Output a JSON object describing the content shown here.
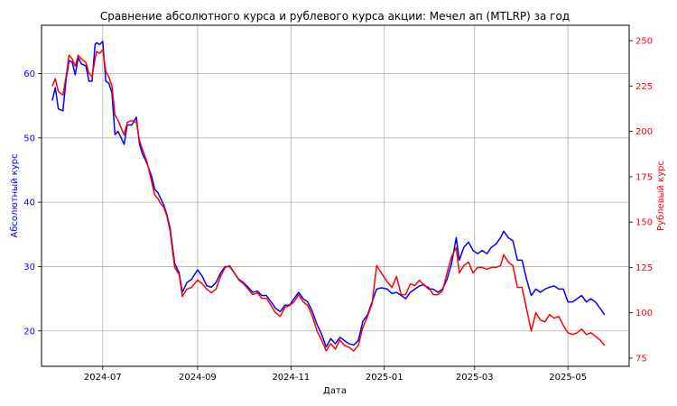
{
  "chart_data": {
    "type": "line",
    "title": "Сравнение абсолютного курса и рублевого курса акции: Мечел ап (MTLRP) за год",
    "xlabel": "Дата",
    "ylabel_left": "Абсолютный курс",
    "ylabel_right": "Рублевый курс",
    "grid": true,
    "colors": {
      "left": "#0000ff",
      "right": "#ff0000"
    },
    "x_ticks": [
      "2024-07",
      "2024-09",
      "2024-11",
      "2025-01",
      "2025-03",
      "2025-05"
    ],
    "y_left_ticks": [
      "20",
      "30",
      "40",
      "50",
      "60"
    ],
    "y_right_ticks": [
      "75",
      "100",
      "125",
      "150",
      "175",
      "200",
      "225",
      "250"
    ],
    "xlim": [
      "2024-05-22",
      "2025-06-10"
    ],
    "ylim_left": [
      14.5,
      67.5
    ],
    "ylim_right": [
      70.5,
      258.5
    ],
    "series": [
      {
        "axis": "left",
        "points": [
          [
            "2024-05-29",
            55.8
          ],
          [
            "2024-05-31",
            57.8
          ],
          [
            "2024-06-02",
            54.5
          ],
          [
            "2024-06-05",
            54.2
          ],
          [
            "2024-06-07",
            59.0
          ],
          [
            "2024-06-09",
            62.0
          ],
          [
            "2024-06-11",
            61.8
          ],
          [
            "2024-06-13",
            59.8
          ],
          [
            "2024-06-15",
            62.5
          ],
          [
            "2024-06-17",
            61.5
          ],
          [
            "2024-06-20",
            61.2
          ],
          [
            "2024-06-22",
            58.8
          ],
          [
            "2024-06-24",
            58.8
          ],
          [
            "2024-06-26",
            64.5
          ],
          [
            "2024-06-27",
            64.8
          ],
          [
            "2024-06-29",
            64.5
          ],
          [
            "2024-07-01",
            65.0
          ],
          [
            "2024-07-03",
            58.8
          ],
          [
            "2024-07-05",
            58.5
          ],
          [
            "2024-07-07",
            57.0
          ],
          [
            "2024-07-09",
            50.5
          ],
          [
            "2024-07-11",
            51.0
          ],
          [
            "2024-07-13",
            50.0
          ],
          [
            "2024-07-15",
            49.0
          ],
          [
            "2024-07-17",
            52.0
          ],
          [
            "2024-07-20",
            52.0
          ],
          [
            "2024-07-23",
            53.2
          ],
          [
            "2024-07-25",
            49.0
          ],
          [
            "2024-07-27",
            47.5
          ],
          [
            "2024-07-30",
            46.0
          ],
          [
            "2024-08-02",
            44.0
          ],
          [
            "2024-08-04",
            42.0
          ],
          [
            "2024-08-06",
            41.5
          ],
          [
            "2024-08-08",
            40.5
          ],
          [
            "2024-08-10",
            39.5
          ],
          [
            "2024-08-12",
            38.0
          ],
          [
            "2024-08-14",
            36.0
          ],
          [
            "2024-08-17",
            30.5
          ],
          [
            "2024-08-20",
            29.0
          ],
          [
            "2024-08-22",
            26.0
          ],
          [
            "2024-08-25",
            27.5
          ],
          [
            "2024-08-28",
            28.0
          ],
          [
            "2024-09-01",
            29.5
          ],
          [
            "2024-09-04",
            28.5
          ],
          [
            "2024-09-07",
            27.0
          ],
          [
            "2024-09-10",
            26.8
          ],
          [
            "2024-09-13",
            27.5
          ],
          [
            "2024-09-16",
            29.0
          ],
          [
            "2024-09-19",
            30.0
          ],
          [
            "2024-09-22",
            30.0
          ],
          [
            "2024-09-25",
            29.0
          ],
          [
            "2024-09-28",
            28.0
          ],
          [
            "2024-10-01",
            27.5
          ],
          [
            "2024-10-04",
            26.8
          ],
          [
            "2024-10-07",
            26.0
          ],
          [
            "2024-10-10",
            26.2
          ],
          [
            "2024-10-13",
            25.5
          ],
          [
            "2024-10-16",
            25.5
          ],
          [
            "2024-10-19",
            24.5
          ],
          [
            "2024-10-22",
            23.5
          ],
          [
            "2024-10-25",
            23.0
          ],
          [
            "2024-10-28",
            24.0
          ],
          [
            "2024-10-31",
            24.0
          ],
          [
            "2024-11-03",
            25.0
          ],
          [
            "2024-11-06",
            26.0
          ],
          [
            "2024-11-09",
            25.0
          ],
          [
            "2024-11-12",
            24.5
          ],
          [
            "2024-11-15",
            23.0
          ],
          [
            "2024-11-18",
            21.0
          ],
          [
            "2024-11-21",
            19.5
          ],
          [
            "2024-11-24",
            17.5
          ],
          [
            "2024-11-27",
            18.8
          ],
          [
            "2024-11-30",
            18.0
          ],
          [
            "2024-12-03",
            19.0
          ],
          [
            "2024-12-06",
            18.5
          ],
          [
            "2024-12-09",
            18.0
          ],
          [
            "2024-12-12",
            17.8
          ],
          [
            "2024-12-15",
            18.5
          ],
          [
            "2024-12-18",
            21.5
          ],
          [
            "2024-12-21",
            22.5
          ],
          [
            "2024-12-24",
            24.5
          ],
          [
            "2024-12-27",
            26.5
          ],
          [
            "2024-12-30",
            26.7
          ],
          [
            "2025-01-03",
            26.5
          ],
          [
            "2025-01-06",
            25.8
          ],
          [
            "2025-01-09",
            26.0
          ],
          [
            "2025-01-12",
            25.5
          ],
          [
            "2025-01-15",
            25.0
          ],
          [
            "2025-01-18",
            26.0
          ],
          [
            "2025-01-21",
            26.5
          ],
          [
            "2025-01-24",
            27.0
          ],
          [
            "2025-01-27",
            27.2
          ],
          [
            "2025-01-30",
            26.5
          ],
          [
            "2025-02-02",
            26.5
          ],
          [
            "2025-02-05",
            26.0
          ],
          [
            "2025-02-08",
            26.5
          ],
          [
            "2025-02-11",
            28.0
          ],
          [
            "2025-02-14",
            30.5
          ],
          [
            "2025-02-17",
            34.5
          ],
          [
            "2025-02-19",
            31.0
          ],
          [
            "2025-02-22",
            33.0
          ],
          [
            "2025-02-25",
            33.8
          ],
          [
            "2025-02-28",
            32.5
          ],
          [
            "2025-03-03",
            32.0
          ],
          [
            "2025-03-06",
            32.5
          ],
          [
            "2025-03-09",
            32.0
          ],
          [
            "2025-03-12",
            33.0
          ],
          [
            "2025-03-15",
            33.5
          ],
          [
            "2025-03-18",
            34.5
          ],
          [
            "2025-03-20",
            35.5
          ],
          [
            "2025-03-23",
            34.5
          ],
          [
            "2025-03-26",
            34.0
          ],
          [
            "2025-03-29",
            31.0
          ],
          [
            "2025-04-01",
            31.0
          ],
          [
            "2025-04-04",
            28.0
          ],
          [
            "2025-04-07",
            25.5
          ],
          [
            "2025-04-10",
            26.5
          ],
          [
            "2025-04-13",
            26.0
          ],
          [
            "2025-04-16",
            26.5
          ],
          [
            "2025-04-19",
            26.8
          ],
          [
            "2025-04-22",
            27.0
          ],
          [
            "2025-04-25",
            26.5
          ],
          [
            "2025-04-28",
            26.5
          ],
          [
            "2025-05-01",
            24.5
          ],
          [
            "2025-05-04",
            24.5
          ],
          [
            "2025-05-07",
            25.0
          ],
          [
            "2025-05-10",
            25.5
          ],
          [
            "2025-05-13",
            24.5
          ],
          [
            "2025-05-16",
            25.0
          ],
          [
            "2025-05-19",
            24.5
          ],
          [
            "2025-05-22",
            23.5
          ],
          [
            "2025-05-25",
            22.5
          ]
        ]
      },
      {
        "axis": "right",
        "points": [
          [
            "2024-05-29",
            225.0
          ],
          [
            "2024-05-31",
            229.0
          ],
          [
            "2024-06-02",
            222.0
          ],
          [
            "2024-06-05",
            220.0
          ],
          [
            "2024-06-07",
            230.0
          ],
          [
            "2024-06-09",
            242.0
          ],
          [
            "2024-06-11",
            240.0
          ],
          [
            "2024-06-13",
            236.0
          ],
          [
            "2024-06-15",
            242.0
          ],
          [
            "2024-06-17",
            240.0
          ],
          [
            "2024-06-20",
            238.0
          ],
          [
            "2024-06-22",
            232.0
          ],
          [
            "2024-06-24",
            230.0
          ],
          [
            "2024-06-26",
            240.0
          ],
          [
            "2024-06-27",
            244.0
          ],
          [
            "2024-06-29",
            243.0
          ],
          [
            "2024-07-01",
            245.0
          ],
          [
            "2024-07-03",
            233.0
          ],
          [
            "2024-07-05",
            230.0
          ],
          [
            "2024-07-07",
            225.0
          ],
          [
            "2024-07-09",
            209.0
          ],
          [
            "2024-07-11",
            206.0
          ],
          [
            "2024-07-13",
            202.0
          ],
          [
            "2024-07-15",
            198.0
          ],
          [
            "2024-07-17",
            205.0
          ],
          [
            "2024-07-20",
            206.0
          ],
          [
            "2024-07-23",
            205.0
          ],
          [
            "2024-07-25",
            195.0
          ],
          [
            "2024-07-27",
            190.0
          ],
          [
            "2024-07-30",
            183.0
          ],
          [
            "2024-08-02",
            172.0
          ],
          [
            "2024-08-04",
            165.0
          ],
          [
            "2024-08-06",
            163.0
          ],
          [
            "2024-08-08",
            160.0
          ],
          [
            "2024-08-10",
            158.0
          ],
          [
            "2024-08-12",
            153.0
          ],
          [
            "2024-08-14",
            145.0
          ],
          [
            "2024-08-17",
            125.0
          ],
          [
            "2024-08-20",
            121.0
          ],
          [
            "2024-08-22",
            109.0
          ],
          [
            "2024-08-25",
            113.0
          ],
          [
            "2024-08-28",
            114.0
          ],
          [
            "2024-09-01",
            118.0
          ],
          [
            "2024-09-04",
            116.0
          ],
          [
            "2024-09-07",
            113.0
          ],
          [
            "2024-09-10",
            111.0
          ],
          [
            "2024-09-13",
            113.0
          ],
          [
            "2024-09-16",
            120.0
          ],
          [
            "2024-09-19",
            125.0
          ],
          [
            "2024-09-22",
            126.0
          ],
          [
            "2024-09-25",
            122.0
          ],
          [
            "2024-09-28",
            118.0
          ],
          [
            "2024-10-01",
            116.0
          ],
          [
            "2024-10-04",
            113.0
          ],
          [
            "2024-10-07",
            110.0
          ],
          [
            "2024-10-10",
            111.0
          ],
          [
            "2024-10-13",
            108.0
          ],
          [
            "2024-10-16",
            108.0
          ],
          [
            "2024-10-19",
            104.0
          ],
          [
            "2024-10-22",
            100.0
          ],
          [
            "2024-10-25",
            98.0
          ],
          [
            "2024-10-28",
            103.0
          ],
          [
            "2024-10-31",
            104.0
          ],
          [
            "2024-11-03",
            106.0
          ],
          [
            "2024-11-06",
            110.0
          ],
          [
            "2024-11-09",
            106.0
          ],
          [
            "2024-11-12",
            104.0
          ],
          [
            "2024-11-15",
            98.0
          ],
          [
            "2024-11-18",
            90.0
          ],
          [
            "2024-11-21",
            85.0
          ],
          [
            "2024-11-24",
            79.0
          ],
          [
            "2024-11-27",
            83.0
          ],
          [
            "2024-11-30",
            80.0
          ],
          [
            "2024-12-03",
            85.0
          ],
          [
            "2024-12-06",
            82.0
          ],
          [
            "2024-12-09",
            81.0
          ],
          [
            "2024-12-12",
            79.0
          ],
          [
            "2024-12-15",
            82.0
          ],
          [
            "2024-12-18",
            92.0
          ],
          [
            "2024-12-21",
            98.0
          ],
          [
            "2024-12-24",
            105.0
          ],
          [
            "2024-12-27",
            126.0
          ],
          [
            "2024-12-30",
            122.0
          ],
          [
            "2025-01-03",
            117.0
          ],
          [
            "2025-01-06",
            114.0
          ],
          [
            "2025-01-09",
            120.0
          ],
          [
            "2025-01-12",
            110.0
          ],
          [
            "2025-01-15",
            110.0
          ],
          [
            "2025-01-18",
            116.0
          ],
          [
            "2025-01-21",
            115.0
          ],
          [
            "2025-01-24",
            118.0
          ],
          [
            "2025-01-27",
            115.0
          ],
          [
            "2025-01-30",
            114.0
          ],
          [
            "2025-02-02",
            110.0
          ],
          [
            "2025-02-05",
            110.0
          ],
          [
            "2025-02-08",
            112.0
          ],
          [
            "2025-02-11",
            122.0
          ],
          [
            "2025-02-14",
            131.0
          ],
          [
            "2025-02-17",
            136.0
          ],
          [
            "2025-02-19",
            122.0
          ],
          [
            "2025-02-22",
            126.0
          ],
          [
            "2025-02-25",
            128.0
          ],
          [
            "2025-02-28",
            122.0
          ],
          [
            "2025-03-03",
            125.0
          ],
          [
            "2025-03-06",
            125.0
          ],
          [
            "2025-03-09",
            124.0
          ],
          [
            "2025-03-12",
            125.0
          ],
          [
            "2025-03-15",
            125.0
          ],
          [
            "2025-03-18",
            126.0
          ],
          [
            "2025-03-20",
            132.0
          ],
          [
            "2025-03-23",
            128.0
          ],
          [
            "2025-03-26",
            126.0
          ],
          [
            "2025-03-29",
            114.0
          ],
          [
            "2025-04-01",
            114.0
          ],
          [
            "2025-04-04",
            102.0
          ],
          [
            "2025-04-07",
            90.0
          ],
          [
            "2025-04-10",
            100.0
          ],
          [
            "2025-04-13",
            96.0
          ],
          [
            "2025-04-16",
            95.0
          ],
          [
            "2025-04-19",
            99.0
          ],
          [
            "2025-04-22",
            97.0
          ],
          [
            "2025-04-25",
            98.0
          ],
          [
            "2025-04-28",
            93.0
          ],
          [
            "2025-05-01",
            89.0
          ],
          [
            "2025-05-04",
            88.0
          ],
          [
            "2025-05-07",
            89.0
          ],
          [
            "2025-05-10",
            91.0
          ],
          [
            "2025-05-13",
            88.0
          ],
          [
            "2025-05-16",
            89.0
          ],
          [
            "2025-05-19",
            87.0
          ],
          [
            "2025-05-22",
            85.0
          ],
          [
            "2025-05-25",
            82.0
          ]
        ]
      }
    ]
  }
}
